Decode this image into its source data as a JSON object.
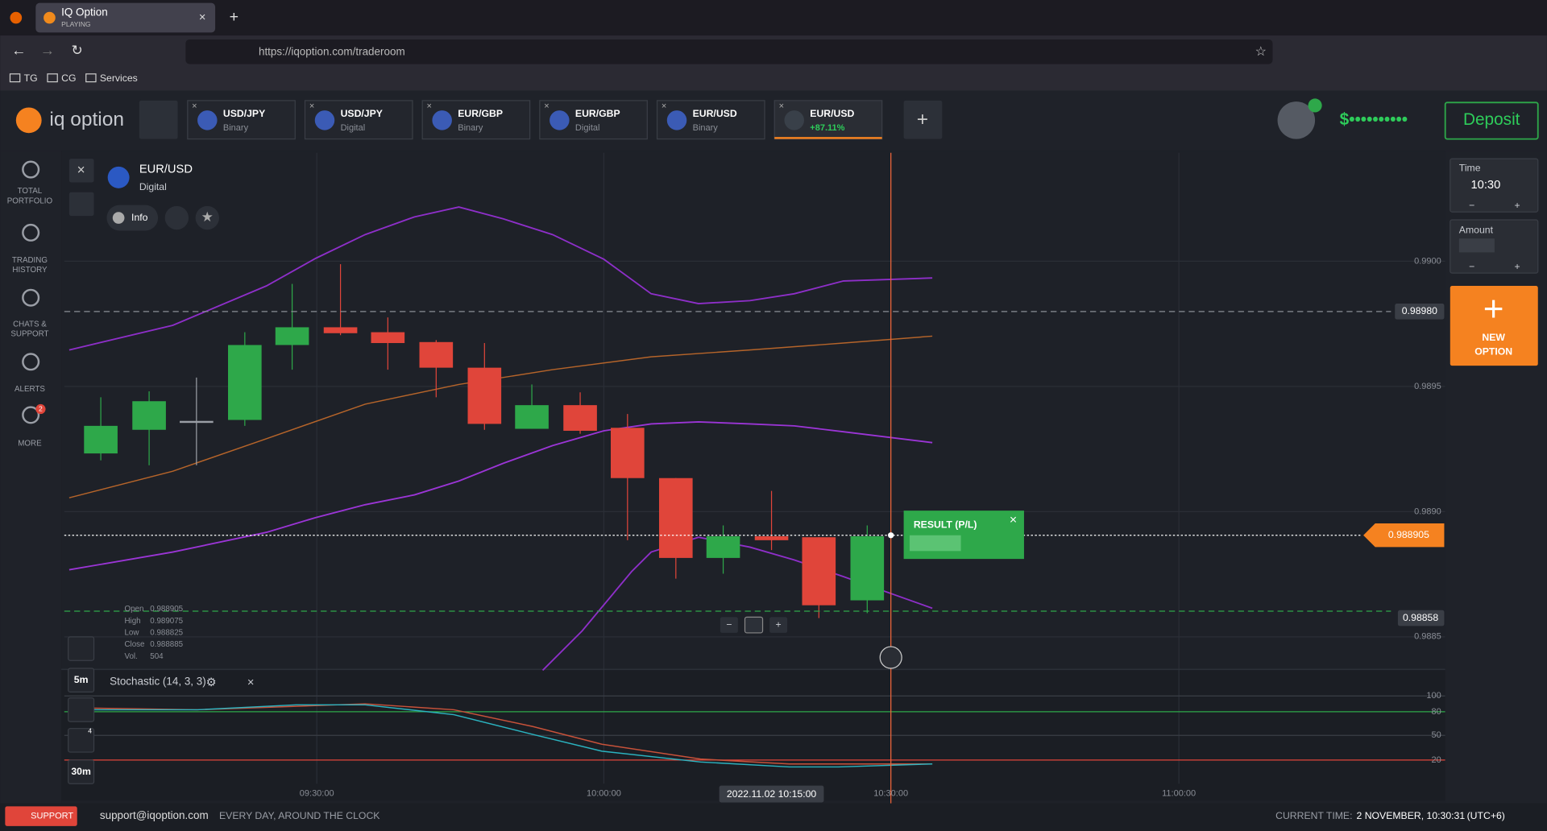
{
  "browser": {
    "tab_title": "IQ Option",
    "tab_subtitle": "PLAYING",
    "url": "https://iqoption.com/traderoom",
    "bookmarks": [
      "TG",
      "CG",
      "Services"
    ]
  },
  "header": {
    "logo": "iq option",
    "assets": [
      {
        "name": "USD/JPY",
        "kind": "Binary"
      },
      {
        "name": "USD/JPY",
        "kind": "Digital"
      },
      {
        "name": "EUR/GBP",
        "kind": "Binary"
      },
      {
        "name": "EUR/GBP",
        "kind": "Digital"
      },
      {
        "name": "EUR/USD",
        "kind": "Binary"
      },
      {
        "name": "EUR/USD",
        "kind": "+87.11%"
      }
    ],
    "balance": "$••••••••••",
    "deposit": "Deposit"
  },
  "sidebar": {
    "items": [
      [
        "TOTAL",
        "PORTFOLIO"
      ],
      [
        "TRADING",
        "HISTORY"
      ],
      [
        "CHATS &",
        "SUPPORT"
      ],
      [
        "ALERTS"
      ],
      [
        "MORE"
      ]
    ],
    "badge": "2"
  },
  "chart": {
    "asset": "EUR/USD",
    "kind": "Digital",
    "info": "Info",
    "price_labels": [
      "0.9900",
      "0.9895",
      "0.9890",
      "0.9885"
    ],
    "level_high": "0.98980",
    "current": "0.988905",
    "level_low": "0.98858",
    "ohlc": [
      [
        "Open",
        "0.988905"
      ],
      [
        "High",
        "0.989075"
      ],
      [
        "Low",
        "0.988825"
      ],
      [
        "Close",
        "0.988885"
      ],
      [
        "Vol.",
        "504"
      ]
    ],
    "result": "RESULT (P/L)",
    "indicator": "Stochastic (14, 3, 3)",
    "stoch_ticks": [
      "100",
      "80",
      "50",
      "20"
    ],
    "times": [
      "09:30:00",
      "10:00:00",
      "10:30:00",
      "11:00:00"
    ],
    "cursor_time": "2022.11.02 10:15:00",
    "timeframes": [
      "5m",
      "30m"
    ],
    "tool_badge": "4"
  },
  "panel": {
    "time_label": "Time",
    "time_value": "10:30",
    "amount_label": "Amount",
    "new_option": [
      "NEW",
      "OPTION"
    ]
  },
  "footer": {
    "support": "SUPPORT",
    "email": "support@iqoption.com",
    "hours": "EVERY DAY, AROUND THE CLOCK",
    "time_label": "CURRENT TIME:",
    "time_value": "2 NOVEMBER, 10:30:31",
    "tz": "(UTC+6)"
  }
}
